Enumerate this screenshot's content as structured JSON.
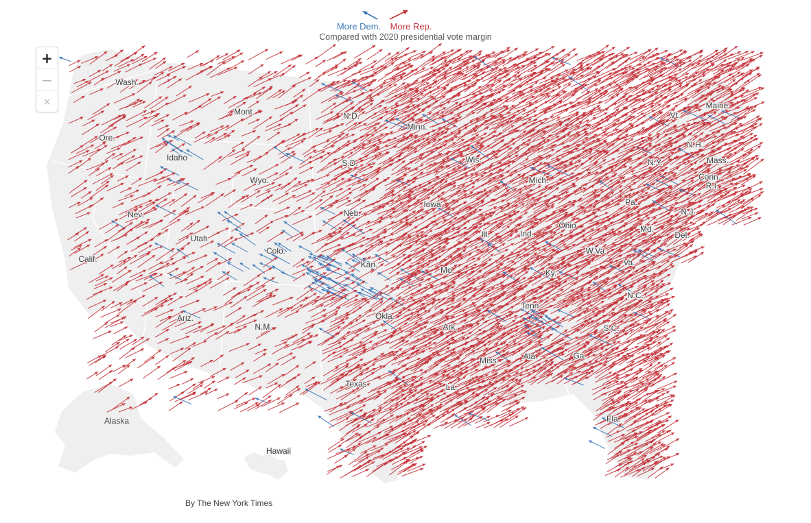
{
  "legend": {
    "dem_label": "More Dem.",
    "rep_label": "More Rep.",
    "subtitle": "Compared with 2020 presidential vote margin",
    "dem_color": "#3a77b8",
    "rep_color": "#c4323a"
  },
  "zoom": {
    "zoom_in": "+",
    "zoom_out": "−",
    "reset": "×"
  },
  "credit": "By The New York Times",
  "map": {
    "land_color": "#efefef",
    "border_color": "#ffffff",
    "state_labels": [
      "Wash.",
      "Ore.",
      "Calif.",
      "Idaho",
      "Nev.",
      "Utah",
      "Ariz.",
      "Mont.",
      "Wyo.",
      "Colo.",
      "N.M.",
      "N.D.",
      "S.D.",
      "Neb.",
      "Kan.",
      "Okla.",
      "Texas",
      "Minn.",
      "Iowa",
      "Mo.",
      "Ark.",
      "La.",
      "Wis.",
      "Ill.",
      "Mich.",
      "Ind.",
      "Ohio",
      "Ky.",
      "Tenn.",
      "Miss.",
      "Ala.",
      "Ga.",
      "Fla.",
      "S.C.",
      "N.C.",
      "Va.",
      "W.Va.",
      "Pa.",
      "N.Y.",
      "Vt.",
      "N.H.",
      "Maine",
      "Mass.",
      "Conn.",
      "R.I.",
      "N.J.",
      "Del.",
      "Md.",
      "Alaska",
      "Hawaii"
    ]
  }
}
